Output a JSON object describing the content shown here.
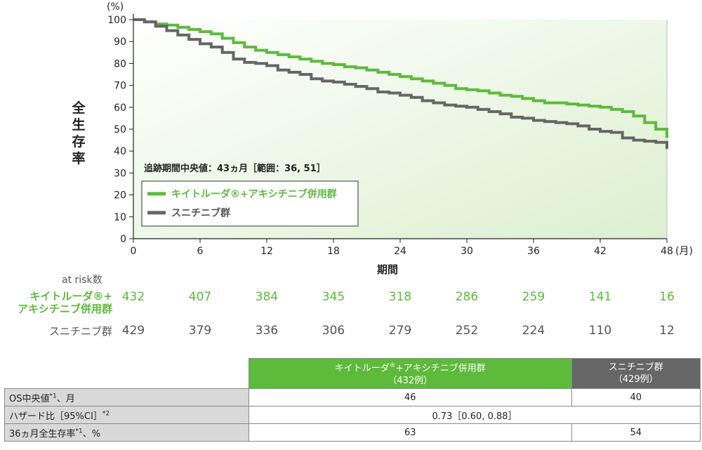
{
  "chart_data": {
    "type": "line",
    "ylabel": "全生存率",
    "yunit": "(%)",
    "xlabel": "期間",
    "xunit": "(月)",
    "xlim": [
      0,
      48
    ],
    "ylim": [
      0,
      100
    ],
    "xticks": [
      0,
      6,
      12,
      18,
      24,
      30,
      36,
      42,
      48
    ],
    "yticks": [
      0,
      10,
      20,
      30,
      40,
      50,
      60,
      70,
      80,
      90,
      100
    ],
    "annotation": "追跡期間中央値：43ヵ月［範囲：36, 51］",
    "series": [
      {
        "name": "キイトルーダ®+アキシチニブ併用群",
        "color": "#5dba3b",
        "x": [
          0,
          1,
          2,
          3,
          4,
          5,
          6,
          7,
          8,
          9,
          10,
          11,
          12,
          13,
          14,
          15,
          16,
          17,
          18,
          19,
          20,
          21,
          22,
          23,
          24,
          25,
          26,
          27,
          28,
          29,
          30,
          31,
          32,
          33,
          34,
          35,
          36,
          37,
          38,
          39,
          40,
          41,
          42,
          43,
          44,
          45,
          46,
          47,
          48
        ],
        "y": [
          100,
          99,
          98,
          97.5,
          96.5,
          95.5,
          94.5,
          93.5,
          91.5,
          89.5,
          87.5,
          86,
          85,
          84,
          83,
          82,
          81,
          80,
          79.5,
          78.5,
          78,
          77,
          76,
          75,
          74,
          73,
          72,
          71,
          70,
          68.5,
          68,
          67.5,
          66.5,
          65.5,
          65,
          64,
          63,
          62,
          62,
          61.5,
          61,
          60.5,
          60,
          59,
          58,
          56,
          53,
          50,
          46
        ]
      },
      {
        "name": "スニチニブ群",
        "color": "#666666",
        "x": [
          0,
          1,
          2,
          3,
          4,
          5,
          6,
          7,
          8,
          9,
          10,
          11,
          12,
          13,
          14,
          15,
          16,
          17,
          18,
          19,
          20,
          21,
          22,
          23,
          24,
          25,
          26,
          27,
          28,
          29,
          30,
          31,
          32,
          33,
          34,
          35,
          36,
          37,
          38,
          39,
          40,
          41,
          42,
          43,
          44,
          45,
          46,
          47,
          48
        ],
        "y": [
          100,
          99,
          97,
          95,
          93,
          91,
          89,
          87.5,
          85,
          82,
          80.5,
          80,
          79,
          77,
          76,
          75,
          73,
          72,
          71.5,
          70.5,
          69.5,
          68.5,
          67,
          66.5,
          65.5,
          64.5,
          63,
          62,
          61,
          60.5,
          60,
          59,
          58,
          57,
          55.5,
          55,
          54,
          53.5,
          53,
          52.5,
          51.5,
          50,
          49,
          48.5,
          46,
          45,
          44.5,
          44,
          41
        ]
      }
    ]
  },
  "at_risk": {
    "header": "at risk数",
    "rows": [
      {
        "label1": "キイトルーダ®+",
        "label2": "アキシチニブ併用群",
        "values": [
          "432",
          "407",
          "384",
          "345",
          "318",
          "286",
          "259",
          "141",
          "16"
        ]
      },
      {
        "label1": "スニチニブ群",
        "label2": "",
        "values": [
          "429",
          "379",
          "336",
          "306",
          "279",
          "252",
          "224",
          "110",
          "12"
        ]
      }
    ]
  },
  "summary": {
    "col1_line1": "キイトルーダ",
    "col1_sup": "®",
    "col1_line1b": "+アキシチニブ併用群",
    "col1_line2": "（432例）",
    "col2_line1": "スニチニブ群",
    "col2_line2": "（429例）",
    "rows": [
      {
        "label": "OS中央値",
        "sup": "*1",
        "label_suffix": "、月",
        "v1": "46",
        "v2": "40"
      },
      {
        "label": "ハザード比［95%CI］",
        "sup": "*2",
        "label_suffix": "",
        "merged": "0.73［0.60, 0.88］"
      },
      {
        "label": "36ヵ月全生存率",
        "sup": "*1",
        "label_suffix": "、%",
        "v1": "63",
        "v2": "54"
      }
    ]
  }
}
